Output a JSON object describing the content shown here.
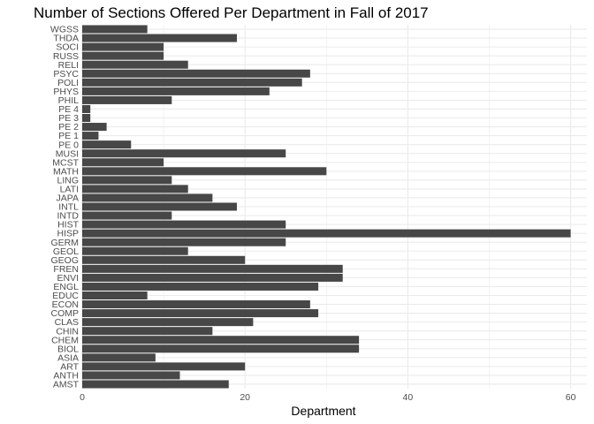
{
  "chart_data": {
    "type": "bar",
    "orientation": "horizontal",
    "title": "Number of Sections Offered Per Department in Fall of 2017",
    "xlabel": "Department",
    "ylabel": "",
    "xlim": [
      0,
      62
    ],
    "x_ticks": [
      0,
      20,
      40,
      60
    ],
    "grid": true,
    "legend": "none",
    "bar_color": "#474747",
    "grid_color": "#ebebeb",
    "categories": [
      "AMST",
      "ANTH",
      "ART",
      "ASIA",
      "BIOL",
      "CHEM",
      "CHIN",
      "CLAS",
      "COMP",
      "ECON",
      "EDUC",
      "ENGL",
      "ENVI",
      "FREN",
      "GEOG",
      "GEOL",
      "GERM",
      "HISP",
      "HIST",
      "INTD",
      "INTL",
      "JAPA",
      "LATI",
      "LING",
      "MATH",
      "MCST",
      "MUSI",
      "PE 0",
      "PE 1",
      "PE 2",
      "PE 3",
      "PE 4",
      "PHIL",
      "PHYS",
      "POLI",
      "PSYC",
      "RELI",
      "RUSS",
      "SOCI",
      "THDA",
      "WGSS"
    ],
    "values": [
      18,
      12,
      20,
      9,
      34,
      34,
      16,
      21,
      29,
      28,
      8,
      29,
      32,
      32,
      20,
      13,
      25,
      60,
      25,
      11,
      19,
      16,
      13,
      11,
      30,
      10,
      25,
      6,
      2,
      3,
      1,
      1,
      11,
      23,
      27,
      28,
      13,
      10,
      10,
      19,
      8
    ]
  }
}
